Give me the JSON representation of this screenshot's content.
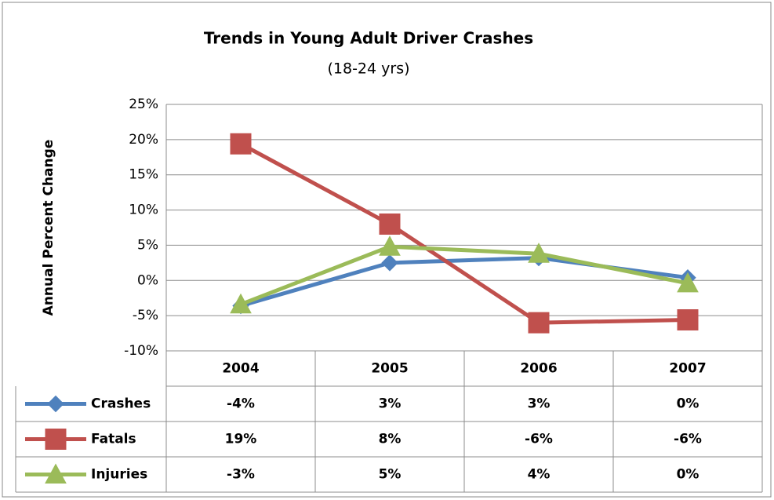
{
  "chart_data": {
    "type": "line",
    "title": "Trends in Young Adult Driver Crashes",
    "subtitle": "(18-24 yrs)",
    "y_label": "Annual Percent Change",
    "categories": [
      "2004",
      "2005",
      "2006",
      "2007"
    ],
    "series": [
      {
        "name": "Crashes",
        "color": "#4f81bd",
        "marker": "diamond",
        "values": [
          -3.6,
          2.5,
          3.2,
          0.4
        ],
        "value_labels": [
          "-4%",
          "3%",
          "3%",
          "0%"
        ]
      },
      {
        "name": "Fatals",
        "color": "#c0504d",
        "marker": "square",
        "values": [
          19.4,
          8,
          -6,
          -5.6
        ],
        "value_labels": [
          "19%",
          "8%",
          "-6%",
          "-6%"
        ]
      },
      {
        "name": "Injuries",
        "color": "#9bbb59",
        "marker": "triangle",
        "values": [
          -3.4,
          4.8,
          3.8,
          -0.4
        ],
        "value_labels": [
          "-3%",
          "5%",
          "4%",
          "0%"
        ]
      }
    ],
    "ylim": [
      -10,
      25
    ],
    "yticks": [
      {
        "value": -10,
        "label": "-10%"
      },
      {
        "value": -5,
        "label": "-5%"
      },
      {
        "value": 0,
        "label": "0%"
      },
      {
        "value": 5,
        "label": "5%"
      },
      {
        "value": 10,
        "label": "10%"
      },
      {
        "value": 15,
        "label": "15%"
      },
      {
        "value": 20,
        "label": "20%"
      },
      {
        "value": 25,
        "label": "25%"
      }
    ],
    "grid": true,
    "data_table": true
  }
}
